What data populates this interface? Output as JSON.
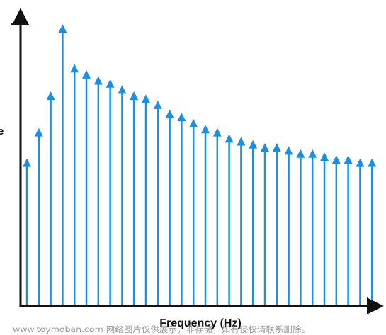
{
  "chart_data": {
    "type": "bar",
    "style": "stem-arrows",
    "xlabel": "Frequency (Hz)",
    "ylabel_visible_fragment": "e",
    "ylim": [
      0,
      100
    ],
    "values": [
      48,
      58,
      70,
      92,
      79,
      77,
      75,
      74,
      72,
      70,
      69,
      67,
      64,
      63,
      61,
      59,
      58,
      56,
      55,
      54,
      53,
      53,
      52,
      51,
      51,
      50,
      49,
      49,
      48,
      48
    ],
    "y_tick_level": 92,
    "grid": false,
    "legend": "none",
    "stem_color": "#1a8fe3",
    "axis_color": "#111111"
  },
  "watermark": {
    "text": "www.toymoban.com 网络图片仅供展示，非存储，如有侵权请联系删除。"
  }
}
